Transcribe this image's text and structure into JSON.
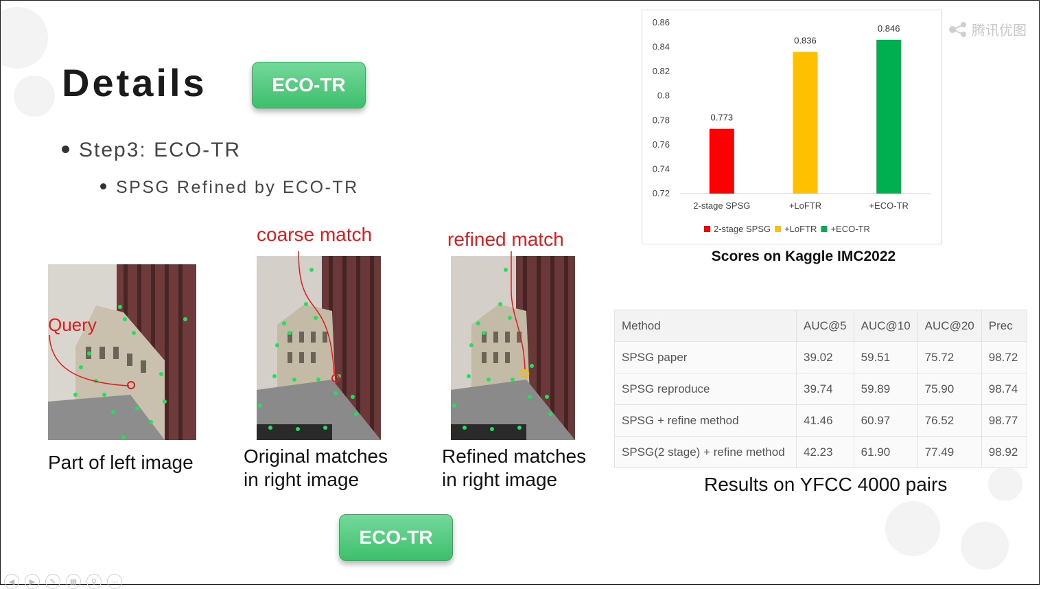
{
  "slide": {
    "title": "Details",
    "top_button_label": "ECO-TR",
    "bottom_button_label": "ECO-TR",
    "bullet_level1": "Step3: ECO-TR",
    "bullet_level2": "SPSG Refined by ECO-TR"
  },
  "figures": {
    "query_label": "Query",
    "coarse_label": "coarse match",
    "refined_label": "refined match",
    "caption_left": "Part of left image",
    "caption_middle_line1": "Original matches",
    "caption_middle_line2": "in right image",
    "caption_right_line1": "Refined matches",
    "caption_right_line2": "in right image",
    "colors": {
      "match_point": "#22e05a",
      "query_marker": "#d42020",
      "refined_marker": "#f0c000",
      "annotation": "#e01b1b"
    }
  },
  "watermark": {
    "text": "腾讯优图",
    "icon": "share-logo-icon"
  },
  "chart_data": {
    "type": "bar",
    "categories": [
      "2-stage SPSG",
      "+LoFTR",
      "+ECO-TR"
    ],
    "values": [
      0.773,
      0.836,
      0.846
    ],
    "value_labels": [
      "0.773",
      "0.836",
      "0.846"
    ],
    "colors": [
      "#ff0000",
      "#ffc000",
      "#00b050"
    ],
    "yticks": [
      "0.86",
      "0.84",
      "0.82",
      "0.8",
      "0.78",
      "0.76",
      "0.74",
      "0.72"
    ],
    "ylim": [
      0.72,
      0.86
    ],
    "legend": [
      "2-stage SPSG",
      "+LoFTR",
      "+ECO-TR"
    ],
    "legend_position": "bottom",
    "grid": false,
    "caption": "Scores on Kaggle IMC2022"
  },
  "table": {
    "headers": [
      "Method",
      "AUC@5",
      "AUC@10",
      "AUC@20",
      "Prec"
    ],
    "rows": [
      [
        "SPSG paper",
        "39.02",
        "59.51",
        "75.72",
        "98.72"
      ],
      [
        "SPSG reproduce",
        "39.74",
        "59.89",
        "75.90",
        "98.74"
      ],
      [
        "SPSG + refine method",
        "41.46",
        "60.97",
        "76.52",
        "98.77"
      ],
      [
        "SPSG(2 stage) + refine method",
        "42.23",
        "61.90",
        "77.49",
        "98.92"
      ]
    ],
    "caption": "Results on YFCC 4000 pairs"
  },
  "nav": {
    "icons": [
      "prev-icon",
      "next-icon",
      "pen-icon",
      "slides-icon",
      "zoom-icon",
      "more-icon"
    ]
  }
}
